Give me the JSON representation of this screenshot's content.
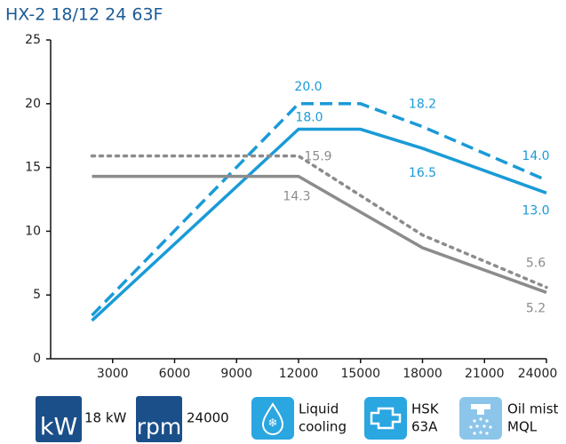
{
  "chart_data": {
    "type": "line",
    "title": "HX-2 18/12 24 63F",
    "xlim": [
      0,
      24000
    ],
    "xticks": [
      3000,
      6000,
      9000,
      12000,
      15000,
      18000,
      21000,
      24000
    ],
    "ylim": [
      0,
      25
    ],
    "yticks": [
      0,
      5,
      10,
      15,
      20,
      25
    ],
    "series": [
      {
        "color": "#1a9bd7",
        "dash": "dashed",
        "x": [
          2000,
          12000,
          15000,
          18000,
          24000
        ],
        "values": [
          3.4,
          20,
          20,
          18.2,
          14
        ],
        "value_labels": [
          null,
          "20.0",
          null,
          "18.2",
          "14.0"
        ]
      },
      {
        "color": "#1a9bd7",
        "dash": "solid",
        "x": [
          2000,
          12000,
          15000,
          18000,
          24000
        ],
        "values": [
          3.0,
          18,
          18,
          16.5,
          13
        ],
        "value_labels": [
          null,
          "18.0",
          null,
          "16.5",
          "13.0"
        ]
      },
      {
        "color": "#8c8c8c",
        "dash": "dotted",
        "x": [
          2000,
          12000,
          18000,
          24000
        ],
        "values": [
          15.9,
          15.9,
          9.7,
          5.6
        ],
        "value_labels": [
          null,
          "15.9",
          null,
          "5.6"
        ]
      },
      {
        "color": "#8c8c8c",
        "dash": "solid",
        "x": [
          2000,
          12000,
          18000,
          24000
        ],
        "values": [
          14.3,
          14.3,
          8.7,
          5.2
        ],
        "value_labels": [
          null,
          "14.3",
          null,
          "5.2"
        ]
      }
    ]
  },
  "specs": [
    {
      "icon": "kW",
      "lines": [
        "18 kW"
      ]
    },
    {
      "icon": "rpm",
      "lines": [
        "24000"
      ]
    },
    {
      "lines": [
        "Liquid",
        "cooling"
      ]
    },
    {
      "lines": [
        "HSK",
        "63A"
      ]
    },
    {
      "lines": [
        "Oil mist",
        "MQL"
      ]
    }
  ]
}
